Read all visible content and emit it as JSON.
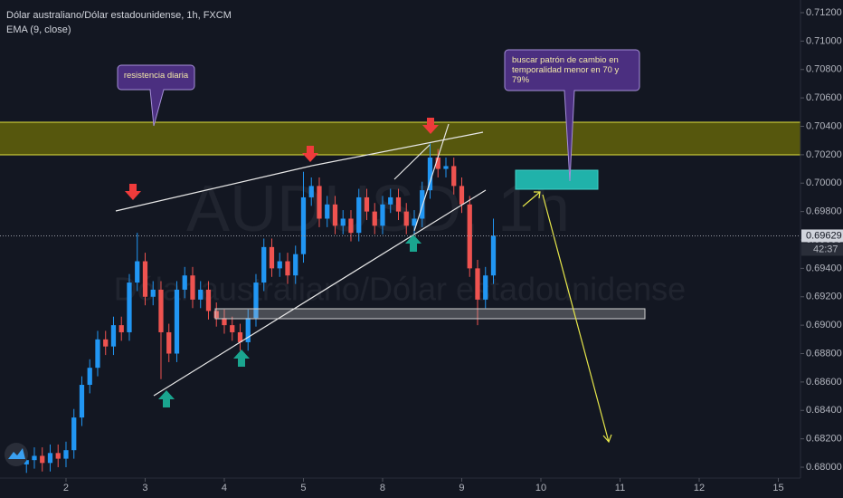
{
  "chart_data": {
    "type": "candlestick",
    "title": "Dólar australiano/Dólar estadounidense, 1h, FXCM",
    "indicator": "EMA (9, close)",
    "watermark": [
      "AUDUSD, 1h",
      "Dólar australiano/Dólar estadounidense"
    ],
    "annotations": [
      "resistencia diaria",
      "buscar patrón de cambio en temporalidad menor en 70 y 79%"
    ],
    "up_color": "#2196f3",
    "down_color": "#ef5350",
    "grid": false,
    "x": [
      -0.5,
      -0.4,
      -0.3,
      -0.2,
      -0.1,
      0,
      0.1,
      0.2,
      0.3,
      0.4,
      0.5,
      0.6,
      0.7,
      0.8,
      0.9,
      1,
      1.1,
      1.2,
      1.3,
      1.4,
      1.5,
      1.6,
      1.7,
      1.8,
      1.9,
      2,
      2.1,
      2.2,
      2.3,
      2.4,
      2.5,
      2.6,
      2.7,
      2.8,
      2.9,
      3,
      3.1,
      3.2,
      3.3,
      3.4,
      3.5,
      3.6,
      3.7,
      3.8,
      3.9,
      4,
      4.1,
      4.2,
      4.3,
      4.4,
      4.5,
      4.6,
      4.7,
      4.8,
      4.9,
      5,
      5.1,
      5.2,
      5.3,
      5.4
    ],
    "open": [
      0.6802,
      0.6805,
      0.6808,
      0.6803,
      0.681,
      0.6806,
      0.6812,
      0.6835,
      0.6858,
      0.687,
      0.689,
      0.6885,
      0.69,
      0.6895,
      0.693,
      0.6945,
      0.692,
      0.6925,
      0.6895,
      0.688,
      0.6925,
      0.6935,
      0.6918,
      0.6925,
      0.691,
      0.6905,
      0.69,
      0.6895,
      0.6888,
      0.6905,
      0.693,
      0.6955,
      0.694,
      0.6945,
      0.6935,
      0.695,
      0.699,
      0.6998,
      0.6975,
      0.6985,
      0.697,
      0.6975,
      0.6965,
      0.699,
      0.698,
      0.697,
      0.6985,
      0.699,
      0.698,
      0.697,
      0.6975,
      0.6995,
      0.7018,
      0.701,
      0.7012,
      0.6998,
      0.6985,
      0.694,
      0.6918,
      0.6935
    ],
    "high": [
      0.6811,
      0.6814,
      0.6814,
      0.6816,
      0.6816,
      0.6818,
      0.6841,
      0.6864,
      0.6876,
      0.6896,
      0.6896,
      0.6906,
      0.6906,
      0.6936,
      0.6965,
      0.6951,
      0.6931,
      0.6931,
      0.6901,
      0.6931,
      0.6941,
      0.6941,
      0.6931,
      0.6931,
      0.6916,
      0.6911,
      0.6906,
      0.6901,
      0.6911,
      0.6936,
      0.6961,
      0.6961,
      0.6951,
      0.6951,
      0.6956,
      0.7008,
      0.7004,
      0.7004,
      0.6991,
      0.6991,
      0.6981,
      0.6981,
      0.6996,
      0.6996,
      0.6986,
      0.6991,
      0.6996,
      0.6996,
      0.6986,
      0.6981,
      0.7001,
      0.7028,
      0.7024,
      0.7018,
      0.7018,
      0.7004,
      0.6991,
      0.6946,
      0.6941,
      0.6975
    ],
    "low": [
      0.6796,
      0.6799,
      0.6797,
      0.6797,
      0.68,
      0.68,
      0.6806,
      0.6829,
      0.6852,
      0.6864,
      0.6879,
      0.6879,
      0.6889,
      0.6889,
      0.6924,
      0.6914,
      0.6914,
      0.6862,
      0.6874,
      0.6874,
      0.6919,
      0.6912,
      0.6912,
      0.6904,
      0.6899,
      0.6894,
      0.6889,
      0.6882,
      0.6882,
      0.6899,
      0.6924,
      0.6934,
      0.6934,
      0.6929,
      0.6929,
      0.6944,
      0.6984,
      0.6969,
      0.6969,
      0.6964,
      0.6964,
      0.6959,
      0.6959,
      0.6974,
      0.6964,
      0.6964,
      0.6979,
      0.6974,
      0.6964,
      0.6964,
      0.6969,
      0.6989,
      0.7004,
      0.7004,
      0.6992,
      0.6979,
      0.6934,
      0.69,
      0.6912,
      0.6929
    ],
    "close": [
      0.6805,
      0.6808,
      0.6803,
      0.681,
      0.6806,
      0.6812,
      0.6835,
      0.6858,
      0.687,
      0.689,
      0.6885,
      0.69,
      0.6895,
      0.693,
      0.6945,
      0.692,
      0.6925,
      0.6895,
      0.688,
      0.6925,
      0.6935,
      0.6918,
      0.6925,
      0.691,
      0.6905,
      0.69,
      0.6895,
      0.6888,
      0.6905,
      0.693,
      0.6955,
      0.694,
      0.6945,
      0.6935,
      0.695,
      0.699,
      0.6998,
      0.6975,
      0.6985,
      0.697,
      0.6975,
      0.6965,
      0.699,
      0.698,
      0.697,
      0.6985,
      0.699,
      0.698,
      0.697,
      0.6975,
      0.6995,
      0.7018,
      0.701,
      0.7012,
      0.6998,
      0.6985,
      0.694,
      0.6918,
      0.6935,
      0.6963
    ],
    "last_price": {
      "value": 0.69629,
      "label": "0.69629"
    },
    "countdown": "42:37",
    "xlim": [
      -0.834,
      9.28
    ],
    "xticks": [
      {
        "value": 0,
        "label": "2"
      },
      {
        "value": 1,
        "label": "3"
      },
      {
        "value": 2,
        "label": "4"
      },
      {
        "value": 3,
        "label": "5"
      },
      {
        "value": 4,
        "label": "8"
      },
      {
        "value": 5,
        "label": "9"
      },
      {
        "value": 6,
        "label": "10"
      },
      {
        "value": 7,
        "label": "11"
      },
      {
        "value": 8,
        "label": "12"
      },
      {
        "value": 9,
        "label": "15"
      }
    ],
    "ylim": [
      0.679236,
      0.712892
    ],
    "yticks": [
      {
        "value": 0.68,
        "label": "0.68000"
      },
      {
        "value": 0.682,
        "label": "0.68200"
      },
      {
        "value": 0.684,
        "label": "0.68400"
      },
      {
        "value": 0.686,
        "label": "0.68600"
      },
      {
        "value": 0.688,
        "label": "0.68800"
      },
      {
        "value": 0.69,
        "label": "0.69000"
      },
      {
        "value": 0.692,
        "label": "0.69200"
      },
      {
        "value": 0.694,
        "label": "0.69400"
      },
      {
        "value": 0.696,
        "label": "0.69600"
      },
      {
        "value": 0.698,
        "label": "0.69800"
      },
      {
        "value": 0.7,
        "label": "0.70000"
      },
      {
        "value": 0.702,
        "label": "0.70200"
      },
      {
        "value": 0.704,
        "label": "0.70400"
      },
      {
        "value": 0.706,
        "label": "0.70600"
      },
      {
        "value": 0.708,
        "label": "0.70800"
      },
      {
        "value": 0.71,
        "label": "0.71000"
      },
      {
        "value": 0.712,
        "label": "0.71200"
      }
    ]
  }
}
